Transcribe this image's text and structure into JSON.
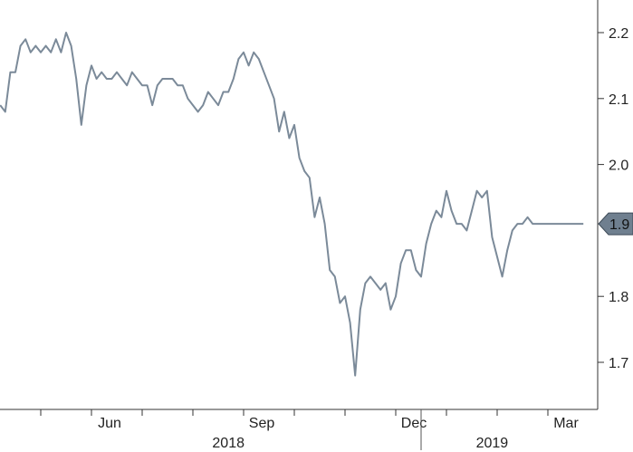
{
  "chart_data": {
    "type": "line",
    "title": "",
    "xlabel": "",
    "ylabel": "",
    "ylim": [
      1.64,
      2.25
    ],
    "grid": false,
    "y_axis_side": "right",
    "y_ticks": [
      {
        "value": 2.2,
        "label": "2.2"
      },
      {
        "value": 2.1,
        "label": "2.1"
      },
      {
        "value": 2.0,
        "label": "2.0"
      },
      {
        "value": 1.8,
        "label": "1.8"
      },
      {
        "value": 1.7,
        "label": "1.7"
      }
    ],
    "x_months": [
      {
        "index": 1,
        "label": ""
      },
      {
        "index": 2,
        "label": "Jun"
      },
      {
        "index": 3,
        "label": ""
      },
      {
        "index": 4,
        "label": ""
      },
      {
        "index": 5,
        "label": "Sep"
      },
      {
        "index": 6,
        "label": ""
      },
      {
        "index": 7,
        "label": ""
      },
      {
        "index": 8,
        "label": "Dec"
      },
      {
        "index": 9,
        "label": ""
      },
      {
        "index": 10,
        "label": ""
      },
      {
        "index": 11,
        "label": "Mar"
      }
    ],
    "x_years": [
      {
        "label": "2018",
        "center": 4.7
      },
      {
        "label": "2019",
        "center": 9.9
      }
    ],
    "year_divider": 8.5,
    "xlim": [
      0.2,
      12.2
    ],
    "last_value_label": "1.9",
    "series": [
      {
        "color": "#7b8a99",
        "x": [
          0.2,
          0.3,
          0.4,
          0.5,
          0.6,
          0.7,
          0.8,
          0.9,
          1.0,
          1.1,
          1.2,
          1.3,
          1.4,
          1.5,
          1.6,
          1.7,
          1.8,
          1.9,
          2.0,
          2.1,
          2.2,
          2.3,
          2.4,
          2.5,
          2.6,
          2.7,
          2.8,
          2.9,
          3.0,
          3.1,
          3.2,
          3.3,
          3.4,
          3.5,
          3.6,
          3.7,
          3.8,
          3.9,
          4.0,
          4.1,
          4.2,
          4.3,
          4.4,
          4.5,
          4.6,
          4.7,
          4.8,
          4.9,
          5.0,
          5.1,
          5.2,
          5.3,
          5.4,
          5.5,
          5.6,
          5.7,
          5.8,
          5.9,
          6.0,
          6.1,
          6.2,
          6.3,
          6.4,
          6.5,
          6.6,
          6.7,
          6.8,
          6.9,
          7.0,
          7.1,
          7.2,
          7.3,
          7.4,
          7.5,
          7.6,
          7.7,
          7.8,
          7.9,
          8.0,
          8.1,
          8.2,
          8.3,
          8.4,
          8.5,
          8.6,
          8.7,
          8.8,
          8.9,
          9.0,
          9.1,
          9.2,
          9.3,
          9.4,
          9.5,
          9.6,
          9.7,
          9.8,
          9.9,
          10.0,
          10.1,
          10.2,
          10.3,
          10.4,
          10.5,
          10.6,
          10.7,
          10.8,
          10.9,
          11.0,
          11.1,
          11.2,
          11.3,
          11.4,
          11.5,
          11.6,
          11.7
        ],
        "values": [
          2.09,
          2.08,
          2.14,
          2.14,
          2.18,
          2.19,
          2.17,
          2.18,
          2.17,
          2.18,
          2.17,
          2.19,
          2.17,
          2.2,
          2.18,
          2.13,
          2.06,
          2.12,
          2.15,
          2.13,
          2.14,
          2.13,
          2.13,
          2.14,
          2.13,
          2.12,
          2.14,
          2.13,
          2.12,
          2.12,
          2.09,
          2.12,
          2.13,
          2.13,
          2.13,
          2.12,
          2.12,
          2.1,
          2.09,
          2.08,
          2.09,
          2.11,
          2.1,
          2.09,
          2.11,
          2.11,
          2.13,
          2.16,
          2.17,
          2.15,
          2.17,
          2.16,
          2.14,
          2.12,
          2.1,
          2.05,
          2.08,
          2.04,
          2.06,
          2.01,
          1.99,
          1.98,
          1.92,
          1.95,
          1.91,
          1.84,
          1.83,
          1.79,
          1.8,
          1.76,
          1.68,
          1.78,
          1.82,
          1.83,
          1.82,
          1.81,
          1.82,
          1.78,
          1.8,
          1.85,
          1.87,
          1.87,
          1.84,
          1.83,
          1.88,
          1.91,
          1.93,
          1.92,
          1.96,
          1.93,
          1.91,
          1.91,
          1.9,
          1.93,
          1.96,
          1.95,
          1.96,
          1.89,
          1.86,
          1.83,
          1.87,
          1.9,
          1.91,
          1.91,
          1.92,
          1.91,
          1.91,
          1.91,
          1.91,
          1.91,
          1.91,
          1.91,
          1.91,
          1.91,
          1.91,
          1.91
        ]
      }
    ]
  }
}
